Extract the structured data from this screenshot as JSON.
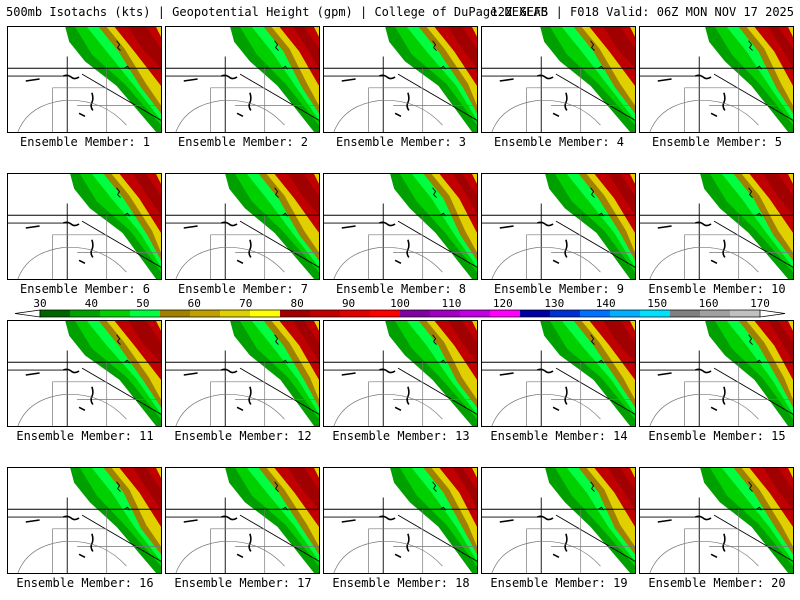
{
  "header": {
    "left": "500mb Isotachs (kts) | Geopotential Height (gpm) | College of DuPage NEXLAB",
    "right": "12Z GEFS | F018 Valid: 06Z MON NOV 17 2025"
  },
  "members": [
    "Ensemble Member: 1",
    "Ensemble Member: 2",
    "Ensemble Member: 3",
    "Ensemble Member: 4",
    "Ensemble Member: 5",
    "Ensemble Member: 6",
    "Ensemble Member: 7",
    "Ensemble Member: 8",
    "Ensemble Member: 9",
    "Ensemble Member: 10",
    "Ensemble Member: 11",
    "Ensemble Member: 12",
    "Ensemble Member: 13",
    "Ensemble Member: 14",
    "Ensemble Member: 15",
    "Ensemble Member: 16",
    "Ensemble Member: 17",
    "Ensemble Member: 18",
    "Ensemble Member: 19",
    "Ensemble Member: 20"
  ],
  "colorbar": {
    "labels": [
      "30",
      "40",
      "50",
      "60",
      "70",
      "80",
      "90",
      "100",
      "110",
      "120",
      "130",
      "140",
      "150",
      "160",
      "170"
    ],
    "colors": [
      "#006400",
      "#00a000",
      "#00d000",
      "#00ff40",
      "#a08000",
      "#c0a000",
      "#e0d000",
      "#ffff00",
      "#a00000",
      "#c00000",
      "#e00000",
      "#ff0000",
      "#8000a0",
      "#a000c0",
      "#c000e0",
      "#ff00ff",
      "#0000a0",
      "#0030d0",
      "#0070ff",
      "#00b0ff",
      "#00e0ff",
      "#808080",
      "#a0a0a0",
      "#c0c0c0"
    ]
  },
  "map_colors": {
    "green_dark": "#00a000",
    "green": "#00d000",
    "green_light": "#00ff40",
    "olive": "#a08000",
    "yellow": "#e0d000",
    "red": "#c00000",
    "red_dark": "#a00000"
  }
}
